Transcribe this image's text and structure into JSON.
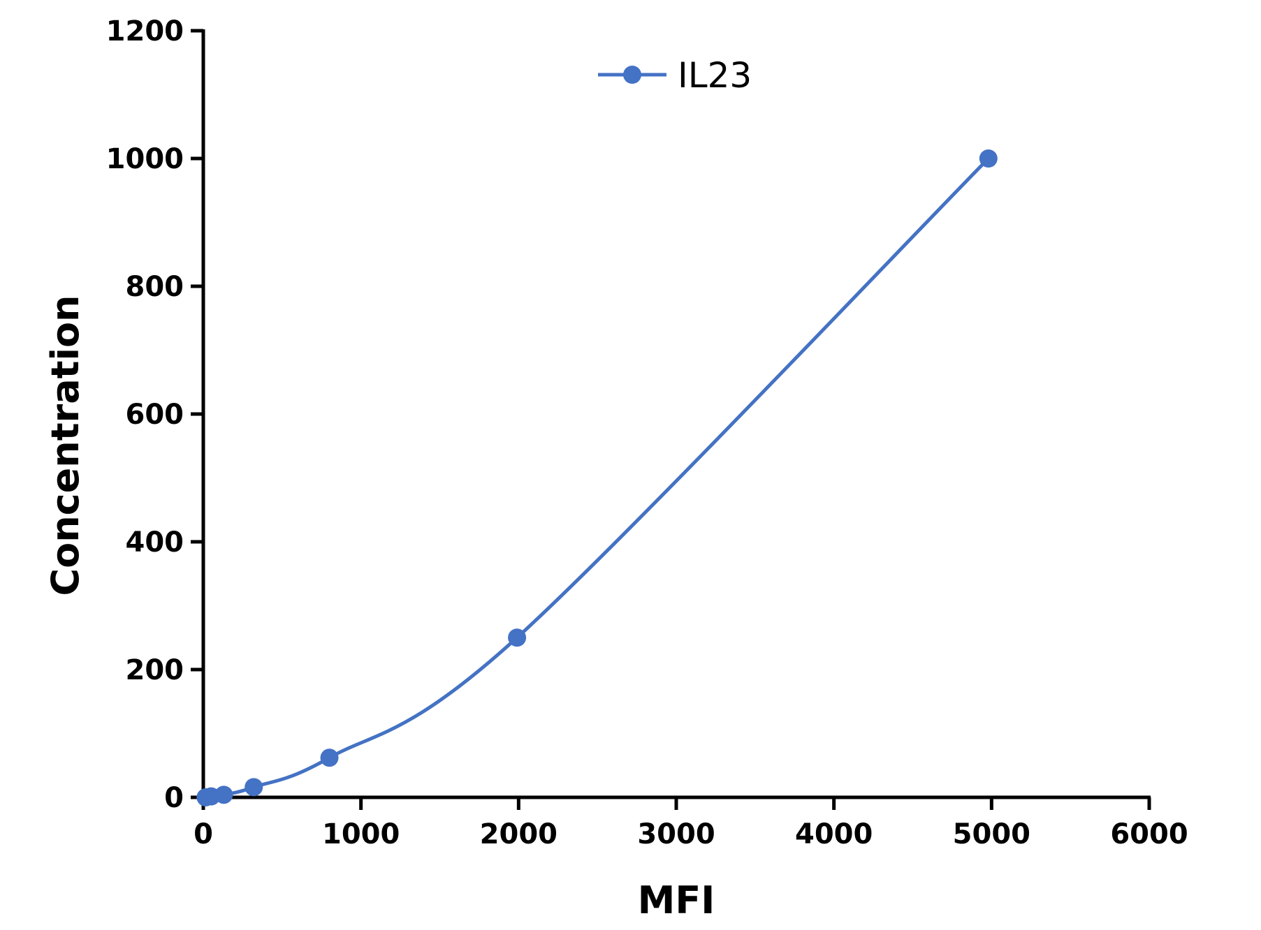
{
  "chart_data": {
    "type": "line",
    "xlabel": "MFI",
    "ylabel": "Concentration",
    "xlim": [
      0,
      6000
    ],
    "ylim": [
      0,
      1200
    ],
    "xticks": [
      "0",
      "1000",
      "2000",
      "3000",
      "4000",
      "5000",
      "6000"
    ],
    "yticks": [
      "0",
      "200",
      "400",
      "600",
      "800",
      "1000",
      "1200"
    ],
    "grid": false,
    "legend": "top-center",
    "color": "#4472C4",
    "series": [
      {
        "name": "IL23",
        "x": [
          15,
          50,
          130,
          320,
          800,
          1990,
          4980
        ],
        "y": [
          0,
          1.5,
          4,
          16,
          62,
          250,
          1000
        ]
      }
    ]
  }
}
